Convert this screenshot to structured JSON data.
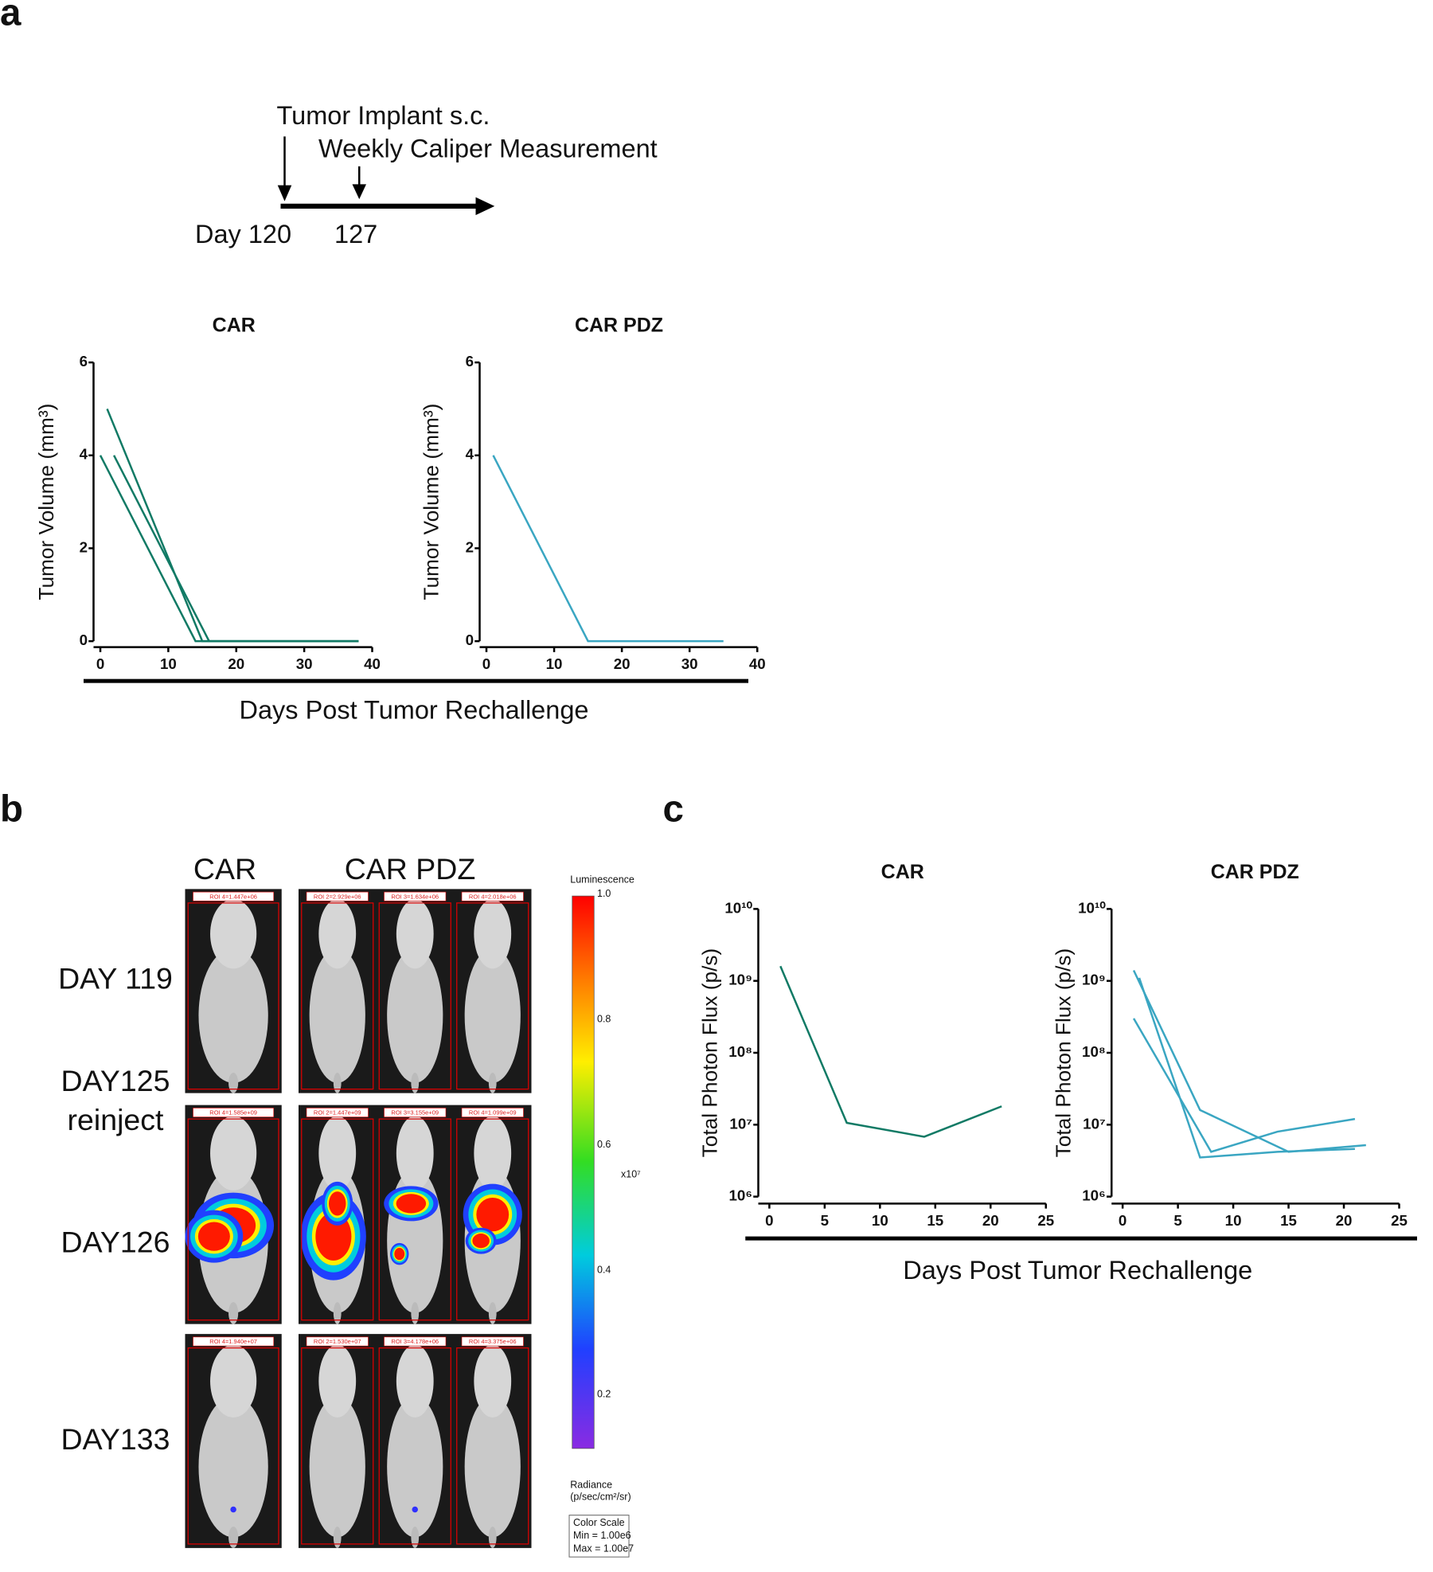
{
  "panel_a": {
    "letter": "a",
    "timeline": {
      "implant": "Tumor Implant s.c.",
      "measure": "Weekly Caliper Measurement",
      "start": "Day 120",
      "next": "127"
    },
    "xlabel": "Days Post Tumor Rechallenge"
  },
  "panel_b": {
    "letter": "b",
    "columns": [
      "CAR",
      "CAR PDZ"
    ],
    "row_labels": [
      "DAY 119",
      "DAY125",
      "reinject",
      "DAY126",
      "DAY133"
    ],
    "roi_labels": [
      [
        "ROI 4=1.447e+06",
        "ROI 2=2.929e+06",
        "ROI 3=1.634e+06",
        "ROI 4=2.018e+06"
      ],
      [
        "ROI 4=1.585e+09",
        "ROI 2=1.447e+09",
        "ROI 3=3.155e+09",
        "ROI 4=1.099e+09"
      ],
      [
        "ROI 4=1.940e+07",
        "ROI 2=1.530e+07",
        "ROI 3=4.178e+06",
        "ROI 4=3.375e+06"
      ]
    ],
    "colorbar": {
      "title": "Luminescence",
      "ticks": [
        "1.0",
        "0.8",
        "0.6",
        "0.4",
        "0.2"
      ],
      "multiplier": "x10⁷",
      "unit_lines": [
        "Radiance",
        "(p/sec/cm²/sr)"
      ],
      "scale_box": [
        "Color Scale",
        "Min = 1.00e6",
        "Max = 1.00e7"
      ]
    }
  },
  "panel_c": {
    "letter": "c",
    "xlabel": "Days Post Tumor Rechallenge"
  },
  "chart_data": [
    {
      "type": "line",
      "title": "CAR",
      "ylabel": "Tumor Volume (mm³)",
      "xlim": [
        -1,
        40
      ],
      "xticks": [
        0,
        10,
        20,
        30,
        40
      ],
      "ylim": [
        0,
        6
      ],
      "yticks": [
        0,
        2,
        4,
        6
      ],
      "series": [
        {
          "color": "#117a65",
          "x": [
            0,
            14,
            38
          ],
          "values": [
            4,
            0,
            0
          ]
        },
        {
          "color": "#117a65",
          "x": [
            1,
            15,
            38
          ],
          "values": [
            5,
            0,
            0
          ]
        },
        {
          "color": "#117a65",
          "x": [
            2,
            16,
            38
          ],
          "values": [
            4,
            0,
            0
          ]
        }
      ]
    },
    {
      "type": "line",
      "title": "CAR PDZ",
      "ylabel": "Tumor Volume (mm³)",
      "xlim": [
        -1,
        40
      ],
      "xticks": [
        0,
        10,
        20,
        30,
        40
      ],
      "ylim": [
        0,
        6
      ],
      "yticks": [
        0,
        2,
        4,
        6
      ],
      "series": [
        {
          "color": "#3aa6c2",
          "x": [
            1,
            15,
            35
          ],
          "values": [
            4,
            0,
            0
          ]
        }
      ]
    },
    {
      "type": "line",
      "title": "CAR",
      "ylabel": "Total Photon Flux (p/s)",
      "log_y": true,
      "xlim": [
        -1,
        25
      ],
      "xticks": [
        0,
        5,
        10,
        15,
        20,
        25
      ],
      "ylim": [
        1000000,
        10000000000
      ],
      "yticks": [
        {
          "value": 1000000,
          "label": "10⁶"
        },
        {
          "value": 10000000,
          "label": "10⁷"
        },
        {
          "value": 100000000,
          "label": "10⁸"
        },
        {
          "value": 1000000000,
          "label": "10⁹"
        },
        {
          "value": 10000000000,
          "label": "10¹⁰"
        }
      ],
      "series": [
        {
          "color": "#117a65",
          "x": [
            1,
            7,
            14,
            21
          ],
          "values": [
            1600000000,
            10600000,
            6800000,
            18000000
          ]
        }
      ]
    },
    {
      "type": "line",
      "title": "CAR PDZ",
      "ylabel": "Total Photon Flux (p/s)",
      "log_y": true,
      "xlim": [
        -1,
        25
      ],
      "xticks": [
        0,
        5,
        10,
        15,
        20,
        25
      ],
      "ylim": [
        1000000,
        10000000000
      ],
      "yticks": [
        {
          "value": 1000000,
          "label": "10⁶"
        },
        {
          "value": 10000000,
          "label": "10⁷"
        },
        {
          "value": 100000000,
          "label": "10⁸"
        },
        {
          "value": 1000000000,
          "label": "10⁹"
        },
        {
          "value": 10000000000,
          "label": "10¹⁰"
        }
      ],
      "series": [
        {
          "color": "#3aa6c2",
          "x": [
            1,
            7,
            15,
            22
          ],
          "values": [
            1400000000,
            16000000,
            4200000,
            5200000
          ]
        },
        {
          "color": "#3aa6c2",
          "x": [
            1.5,
            7,
            14,
            21
          ],
          "values": [
            1100000000,
            3500000,
            4200000,
            4600000
          ]
        },
        {
          "color": "#3aa6c2",
          "x": [
            1,
            8,
            14,
            21
          ],
          "values": [
            300000000,
            4200000,
            8000000,
            12000000
          ]
        }
      ]
    }
  ]
}
